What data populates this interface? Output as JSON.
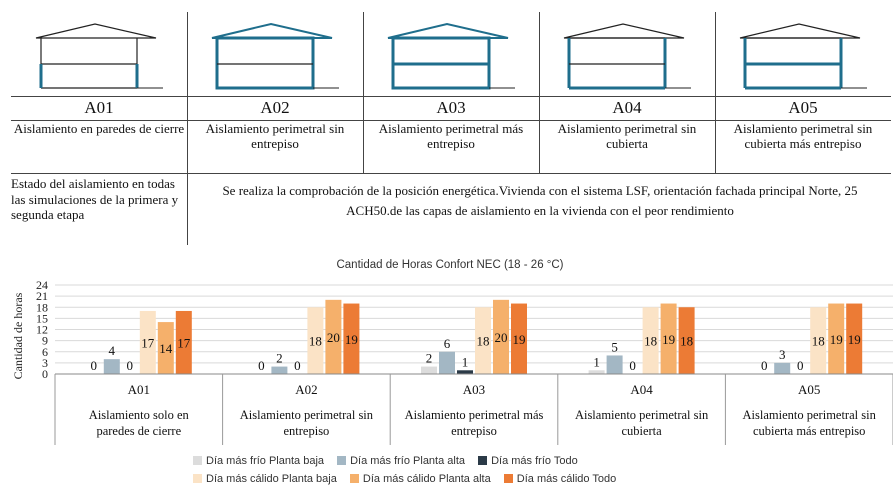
{
  "configs": [
    {
      "code": "A01",
      "description": "Aislamiento en paredes de cierre"
    },
    {
      "code": "A02",
      "description": "Aislamiento perimetral sin entrepiso"
    },
    {
      "code": "A03",
      "description": "Aislamiento perimetral más entrepiso"
    },
    {
      "code": "A04",
      "description": "Aislamiento perimetral sin cubierta"
    },
    {
      "code": "A05",
      "description": "Aislamiento perimetral sin cubierta más entrepiso"
    }
  ],
  "state_row": {
    "label": "Estado del aislamiento en todas las simulaciones de la primera y segunda etapa",
    "text": "Se realiza la comprobación de la posición  energética.Vivienda con el sistema LSF, orientación fachada principal Norte, 25 ACH50.de las capas de aislamiento en la vivienda con el peor rendimiento"
  },
  "colors": {
    "insulation": "#1f6e8c",
    "frame": "#222222",
    "series": [
      "#dcdcdc",
      "#a3b7c4",
      "#2b3a47",
      "#fbe3c6",
      "#f5b06b",
      "#ec7b35"
    ]
  },
  "chart_data": {
    "type": "bar",
    "title": "Cantidad de Horas Confort NEC (18 - 26 °C)",
    "ylabel": "Cantidad de horas",
    "ylim": [
      0,
      24
    ],
    "yticks": [
      0,
      3,
      6,
      9,
      12,
      15,
      18,
      21,
      24
    ],
    "categories": [
      {
        "code": "A01",
        "label": "Aislamiento solo en paredes de cierre"
      },
      {
        "code": "A02",
        "label": "Aislamiento perimetral sin entrepiso"
      },
      {
        "code": "A03",
        "label": "Aislamiento perimetral más entrepiso"
      },
      {
        "code": "A04",
        "label": "Aislamiento perimetral sin cubierta"
      },
      {
        "code": "A05",
        "label": "Aislamiento perimetral sin cubierta más entrepiso"
      }
    ],
    "series": [
      {
        "name": "Día más frío Planta baja",
        "values": [
          0,
          0,
          2,
          1,
          0
        ]
      },
      {
        "name": "Día más frío Planta alta",
        "values": [
          4,
          2,
          6,
          5,
          3
        ]
      },
      {
        "name": "Día más frío Todo",
        "values": [
          0,
          0,
          1,
          0,
          0
        ]
      },
      {
        "name": "Día más cálido Planta baja",
        "values": [
          17,
          18,
          18,
          18,
          18
        ]
      },
      {
        "name": "Día más cálido Planta alta",
        "values": [
          14,
          20,
          20,
          19,
          19
        ]
      },
      {
        "name": "Día más cálido Todo",
        "values": [
          17,
          19,
          19,
          18,
          19
        ]
      }
    ],
    "grid": true,
    "legend_position": "bottom"
  }
}
